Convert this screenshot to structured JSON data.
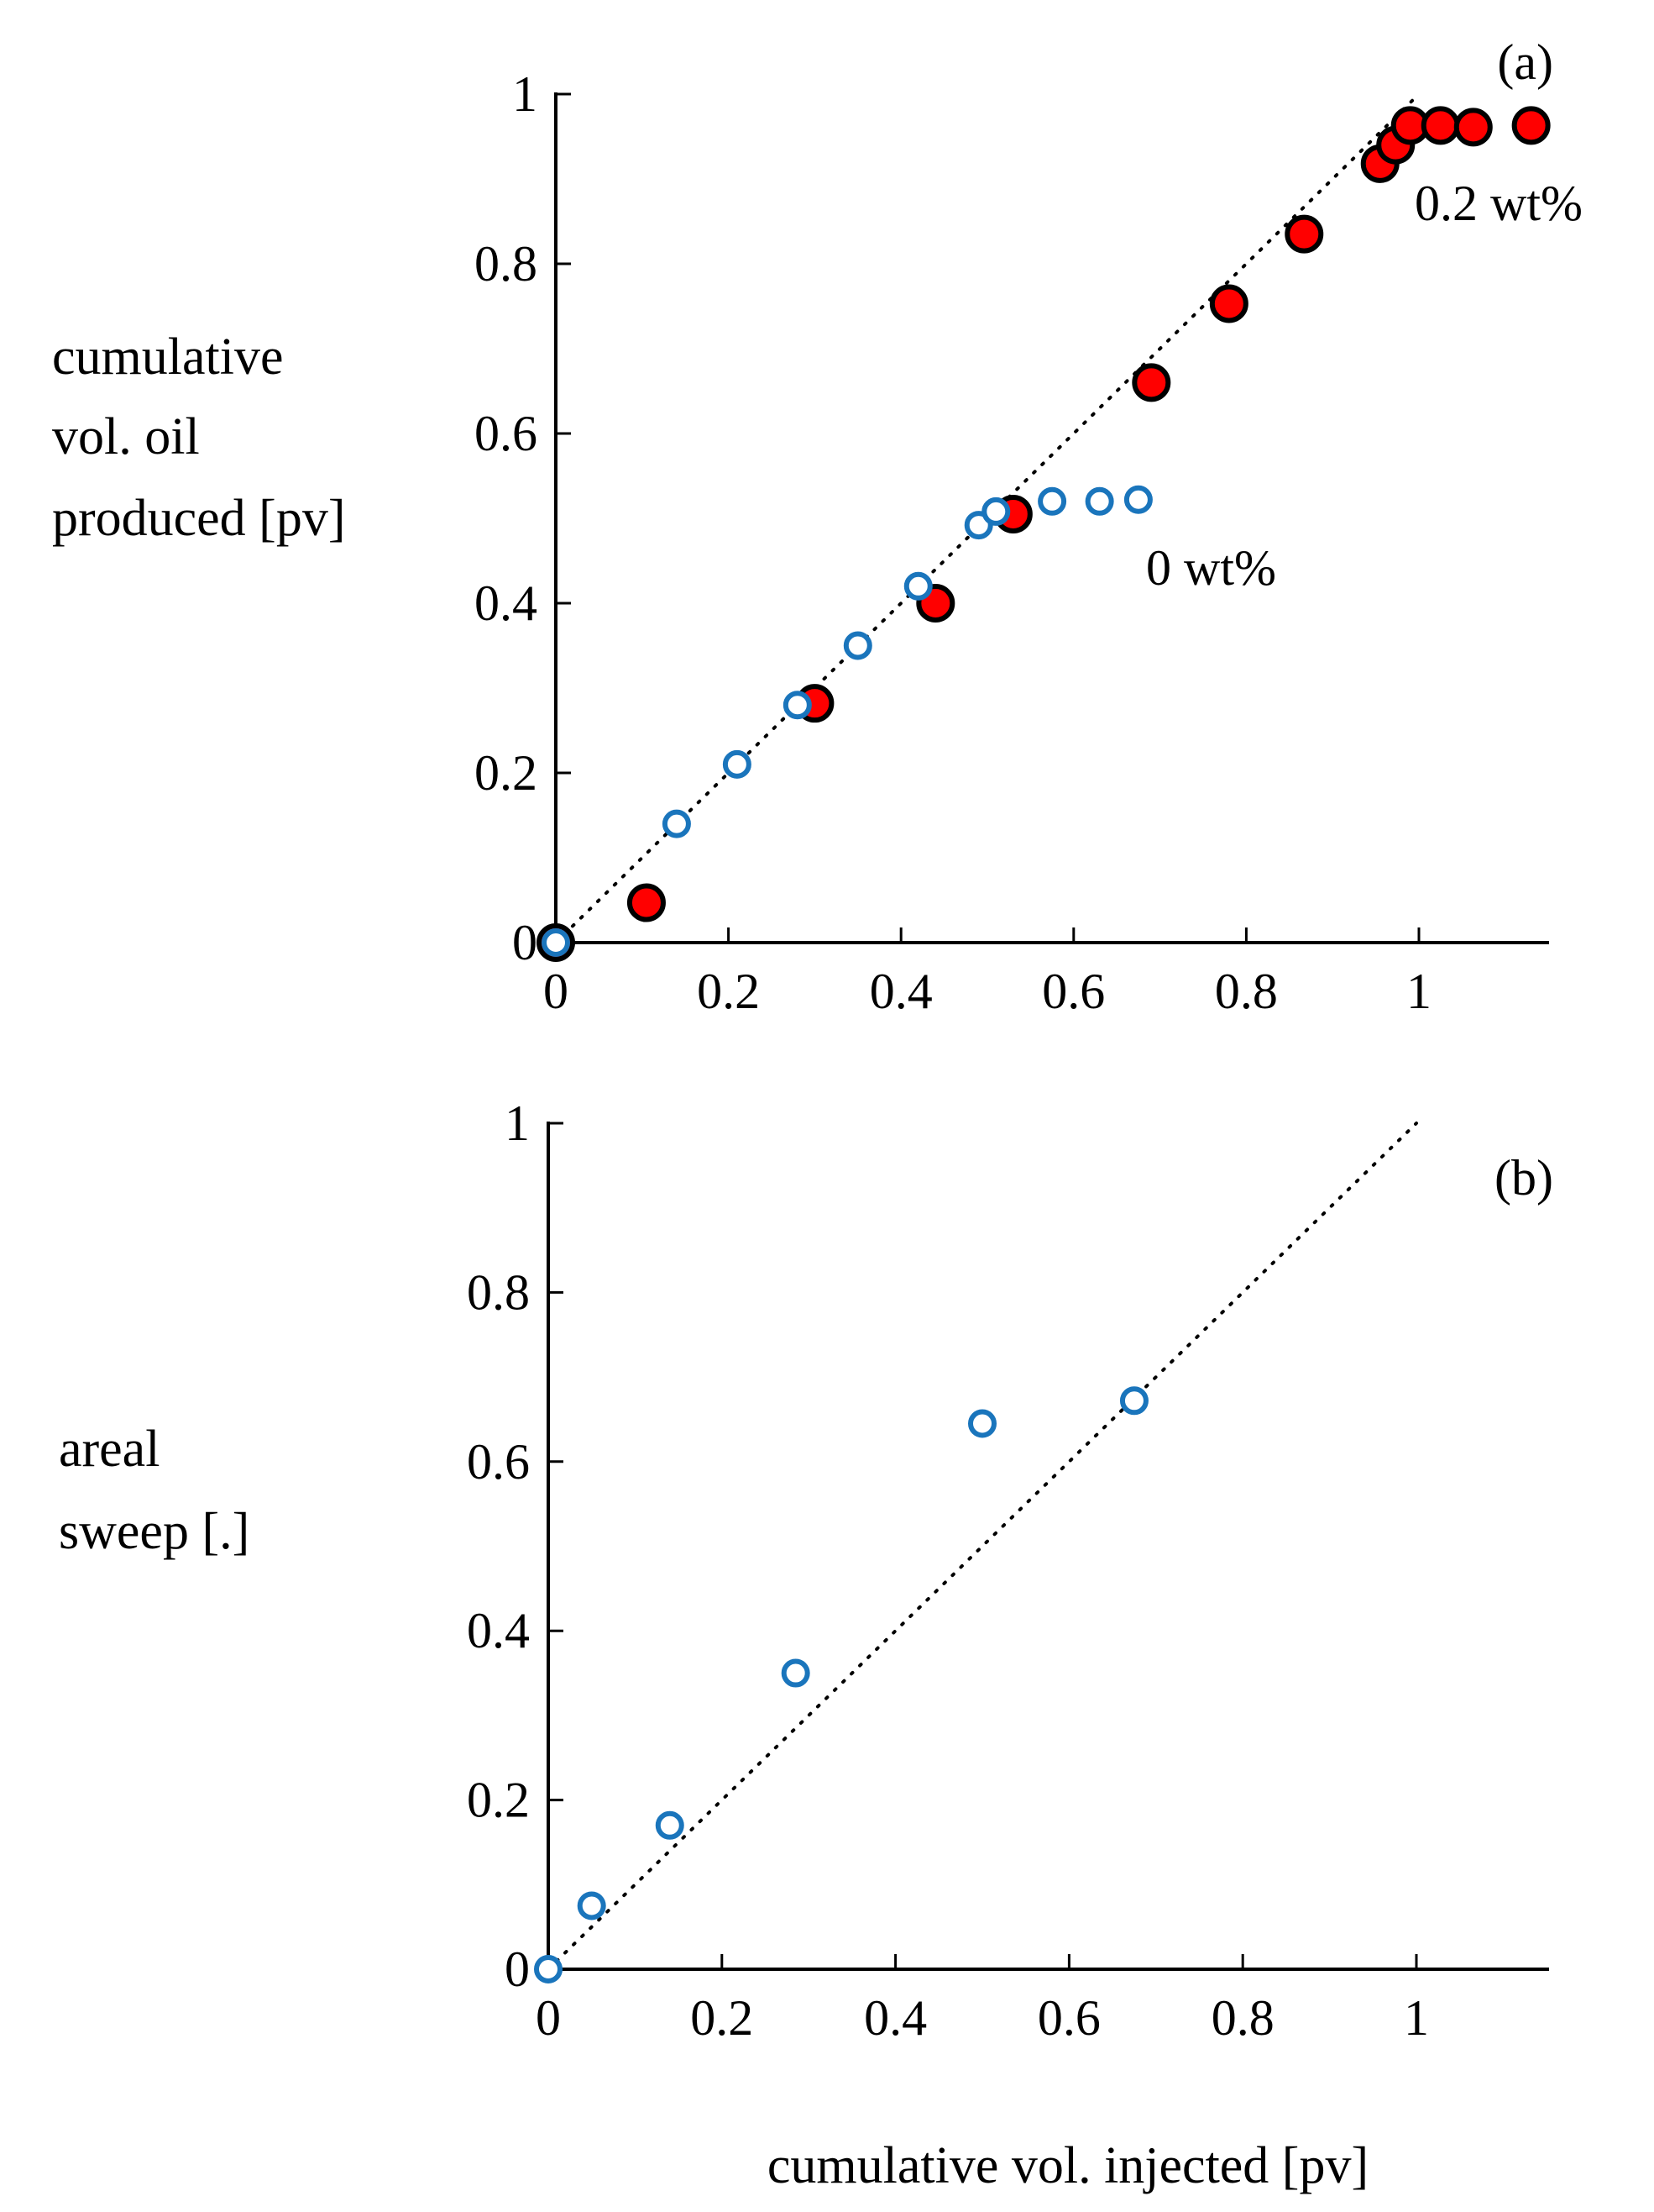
{
  "colors": {
    "axis": "#000000",
    "polymer_fill": "#ff0000",
    "polymer_edge": "#000000",
    "water_edge": "#1a75bc",
    "water_fill": "#ffffff",
    "reference_line": "#000000"
  },
  "chart_data": [
    {
      "type": "scatter",
      "panel_label": "(a)",
      "ylabel_lines": [
        "cumulative",
        "vol. oil",
        "produced [pv]"
      ],
      "xlabel": "cumulative vol. injected [pv]",
      "xlim": [
        0,
        1.15
      ],
      "ylim": [
        0,
        1
      ],
      "xticks": [
        0,
        0.2,
        0.4,
        0.6,
        0.8,
        1
      ],
      "xtick_labels": [
        "0",
        "0.2",
        "0.4",
        "0.6",
        "0.8",
        "1"
      ],
      "yticks": [
        0,
        0.2,
        0.4,
        0.6,
        0.8,
        1
      ],
      "ytick_labels": [
        "0",
        "0.2",
        "0.4",
        "0.6",
        "0.8",
        "1"
      ],
      "reference_line": {
        "style": "dotted",
        "x": [
          0,
          1
        ],
        "y": [
          0,
          1
        ]
      },
      "series": [
        {
          "name": "0.2 wt%",
          "marker": "filled-circle",
          "x": [
            0,
            0.105,
            0.3,
            0.44,
            0.53,
            0.69,
            0.78,
            0.867,
            0.955,
            0.973,
            0.99,
            1.025,
            1.063,
            1.13
          ],
          "y": [
            0,
            0.047,
            0.282,
            0.4,
            0.505,
            0.66,
            0.753,
            0.835,
            0.918,
            0.94,
            0.963,
            0.963,
            0.961,
            0.963
          ]
        },
        {
          "name": "0 wt%",
          "marker": "open-circle",
          "x": [
            0,
            0.14,
            0.21,
            0.28,
            0.35,
            0.42,
            0.49,
            0.51,
            0.575,
            0.63,
            0.675
          ],
          "y": [
            0,
            0.14,
            0.21,
            0.28,
            0.35,
            0.42,
            0.492,
            0.508,
            0.52,
            0.52,
            0.522
          ]
        }
      ],
      "annotations": [
        {
          "text": "0.2 wt%",
          "x": 1.0,
          "y": 0.865
        },
        {
          "text": "0 wt%",
          "x": 0.69,
          "y": 0.43
        }
      ]
    },
    {
      "type": "scatter",
      "panel_label": "(b)",
      "ylabel_lines": [
        "areal",
        "sweep [.]"
      ],
      "xlabel": "cumulative vol. injected [pv]",
      "xlim": [
        0,
        1.15
      ],
      "ylim": [
        0,
        1
      ],
      "xticks": [
        0,
        0.2,
        0.4,
        0.6,
        0.8,
        1
      ],
      "xtick_labels": [
        "0",
        "0.2",
        "0.4",
        "0.6",
        "0.8",
        "1"
      ],
      "yticks": [
        0,
        0.2,
        0.4,
        0.6,
        0.8,
        1
      ],
      "ytick_labels": [
        "0",
        "0.2",
        "0.4",
        "0.6",
        "0.8",
        "1"
      ],
      "reference_line": {
        "style": "dotted",
        "x": [
          0,
          1
        ],
        "y": [
          0,
          1
        ]
      },
      "series": [
        {
          "name": "0 wt%",
          "marker": "open-circle",
          "x": [
            0,
            0.05,
            0.14,
            0.285,
            0.5,
            0.675
          ],
          "y": [
            0,
            0.075,
            0.17,
            0.35,
            0.645,
            0.672
          ]
        }
      ],
      "annotations": []
    }
  ]
}
